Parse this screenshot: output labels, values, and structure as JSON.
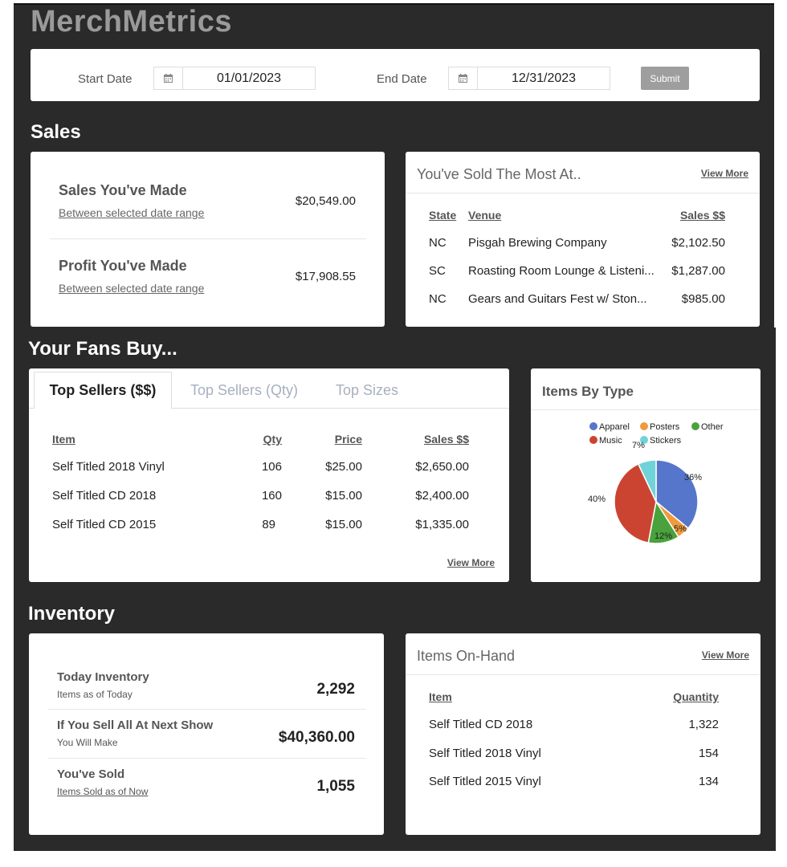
{
  "app": {
    "title": "MerchMetrics"
  },
  "date_filter": {
    "start_label": "Start Date",
    "start_value": "01/01/2023",
    "end_label": "End Date",
    "end_value": "12/31/2023",
    "submit_label": "Submit",
    "calendar_icon": "calendar-icon"
  },
  "sales": {
    "section_title": "Sales",
    "made_title": "Sales You've Made",
    "made_sub": "Between selected date range",
    "made_value": "$20,549.00",
    "profit_title": "Profit You've Made",
    "profit_sub": "Between selected date range",
    "profit_value": "$17,908.55"
  },
  "sold_most": {
    "title": "You've Sold The Most At..",
    "view_more": "View More",
    "headers": {
      "state": "State",
      "venue": "Venue",
      "sales": "Sales $$"
    },
    "rows": [
      {
        "state": "NC",
        "venue": "Pisgah Brewing Company",
        "sales": "$2,102.50"
      },
      {
        "state": "SC",
        "venue": "Roasting Room Lounge & Listeni...",
        "sales": "$1,287.00"
      },
      {
        "state": "NC",
        "venue": "Gears and Guitars Fest w/ Ston...",
        "sales": "$985.00"
      }
    ]
  },
  "fans": {
    "section_title": "Your Fans Buy...",
    "tabs": [
      {
        "label": "Top Sellers ($$)"
      },
      {
        "label": "Top Sellers (Qty)"
      },
      {
        "label": "Top Sizes"
      }
    ],
    "headers": {
      "item": "Item",
      "qty": "Qty",
      "price": "Price",
      "sales": "Sales $$"
    },
    "rows": [
      {
        "item": "Self Titled 2018 Vinyl",
        "qty": "106",
        "price": "$25.00",
        "sales": "$2,650.00"
      },
      {
        "item": "Self Titled CD 2018",
        "qty": "160",
        "price": "$15.00",
        "sales": "$2,400.00"
      },
      {
        "item": "Self Titled CD 2015",
        "qty": "89",
        "price": "$15.00",
        "sales": "$1,335.00"
      }
    ],
    "view_more": "View More"
  },
  "items_by_type": {
    "title": "Items By Type"
  },
  "chart_data": {
    "type": "pie",
    "title": "",
    "legend_position": "top",
    "series": [
      {
        "name": "Apparel",
        "value": 36,
        "label": "36%",
        "color": "#5676cc"
      },
      {
        "name": "Posters",
        "value": 5,
        "label": "5%",
        "color": "#ef9a3c"
      },
      {
        "name": "Other",
        "value": 12,
        "label": "12%",
        "color": "#4aa23c"
      },
      {
        "name": "Music",
        "value": 40,
        "label": "40%",
        "color": "#cb4431"
      },
      {
        "name": "Stickers",
        "value": 7,
        "label": "7%",
        "color": "#6fd3d8"
      }
    ]
  },
  "inventory": {
    "section_title": "Inventory",
    "today_title": "Today Inventory",
    "today_sub": "Items as of Today",
    "today_value": "2,292",
    "next_title": "If You Sell All At Next Show",
    "next_sub": "You Will Make",
    "next_value": "$40,360.00",
    "sold_title": "You've Sold",
    "sold_sub": "Items Sold as of Now",
    "sold_value": "1,055"
  },
  "on_hand": {
    "title": "Items On-Hand",
    "view_more": "View More",
    "headers": {
      "item": "Item",
      "quantity": "Quantity"
    },
    "rows": [
      {
        "item": "Self Titled CD 2018",
        "quantity": "1,322"
      },
      {
        "item": "Self Titled 2018 Vinyl",
        "quantity": "154"
      },
      {
        "item": "Self Titled 2015 Vinyl",
        "quantity": "134"
      }
    ]
  }
}
